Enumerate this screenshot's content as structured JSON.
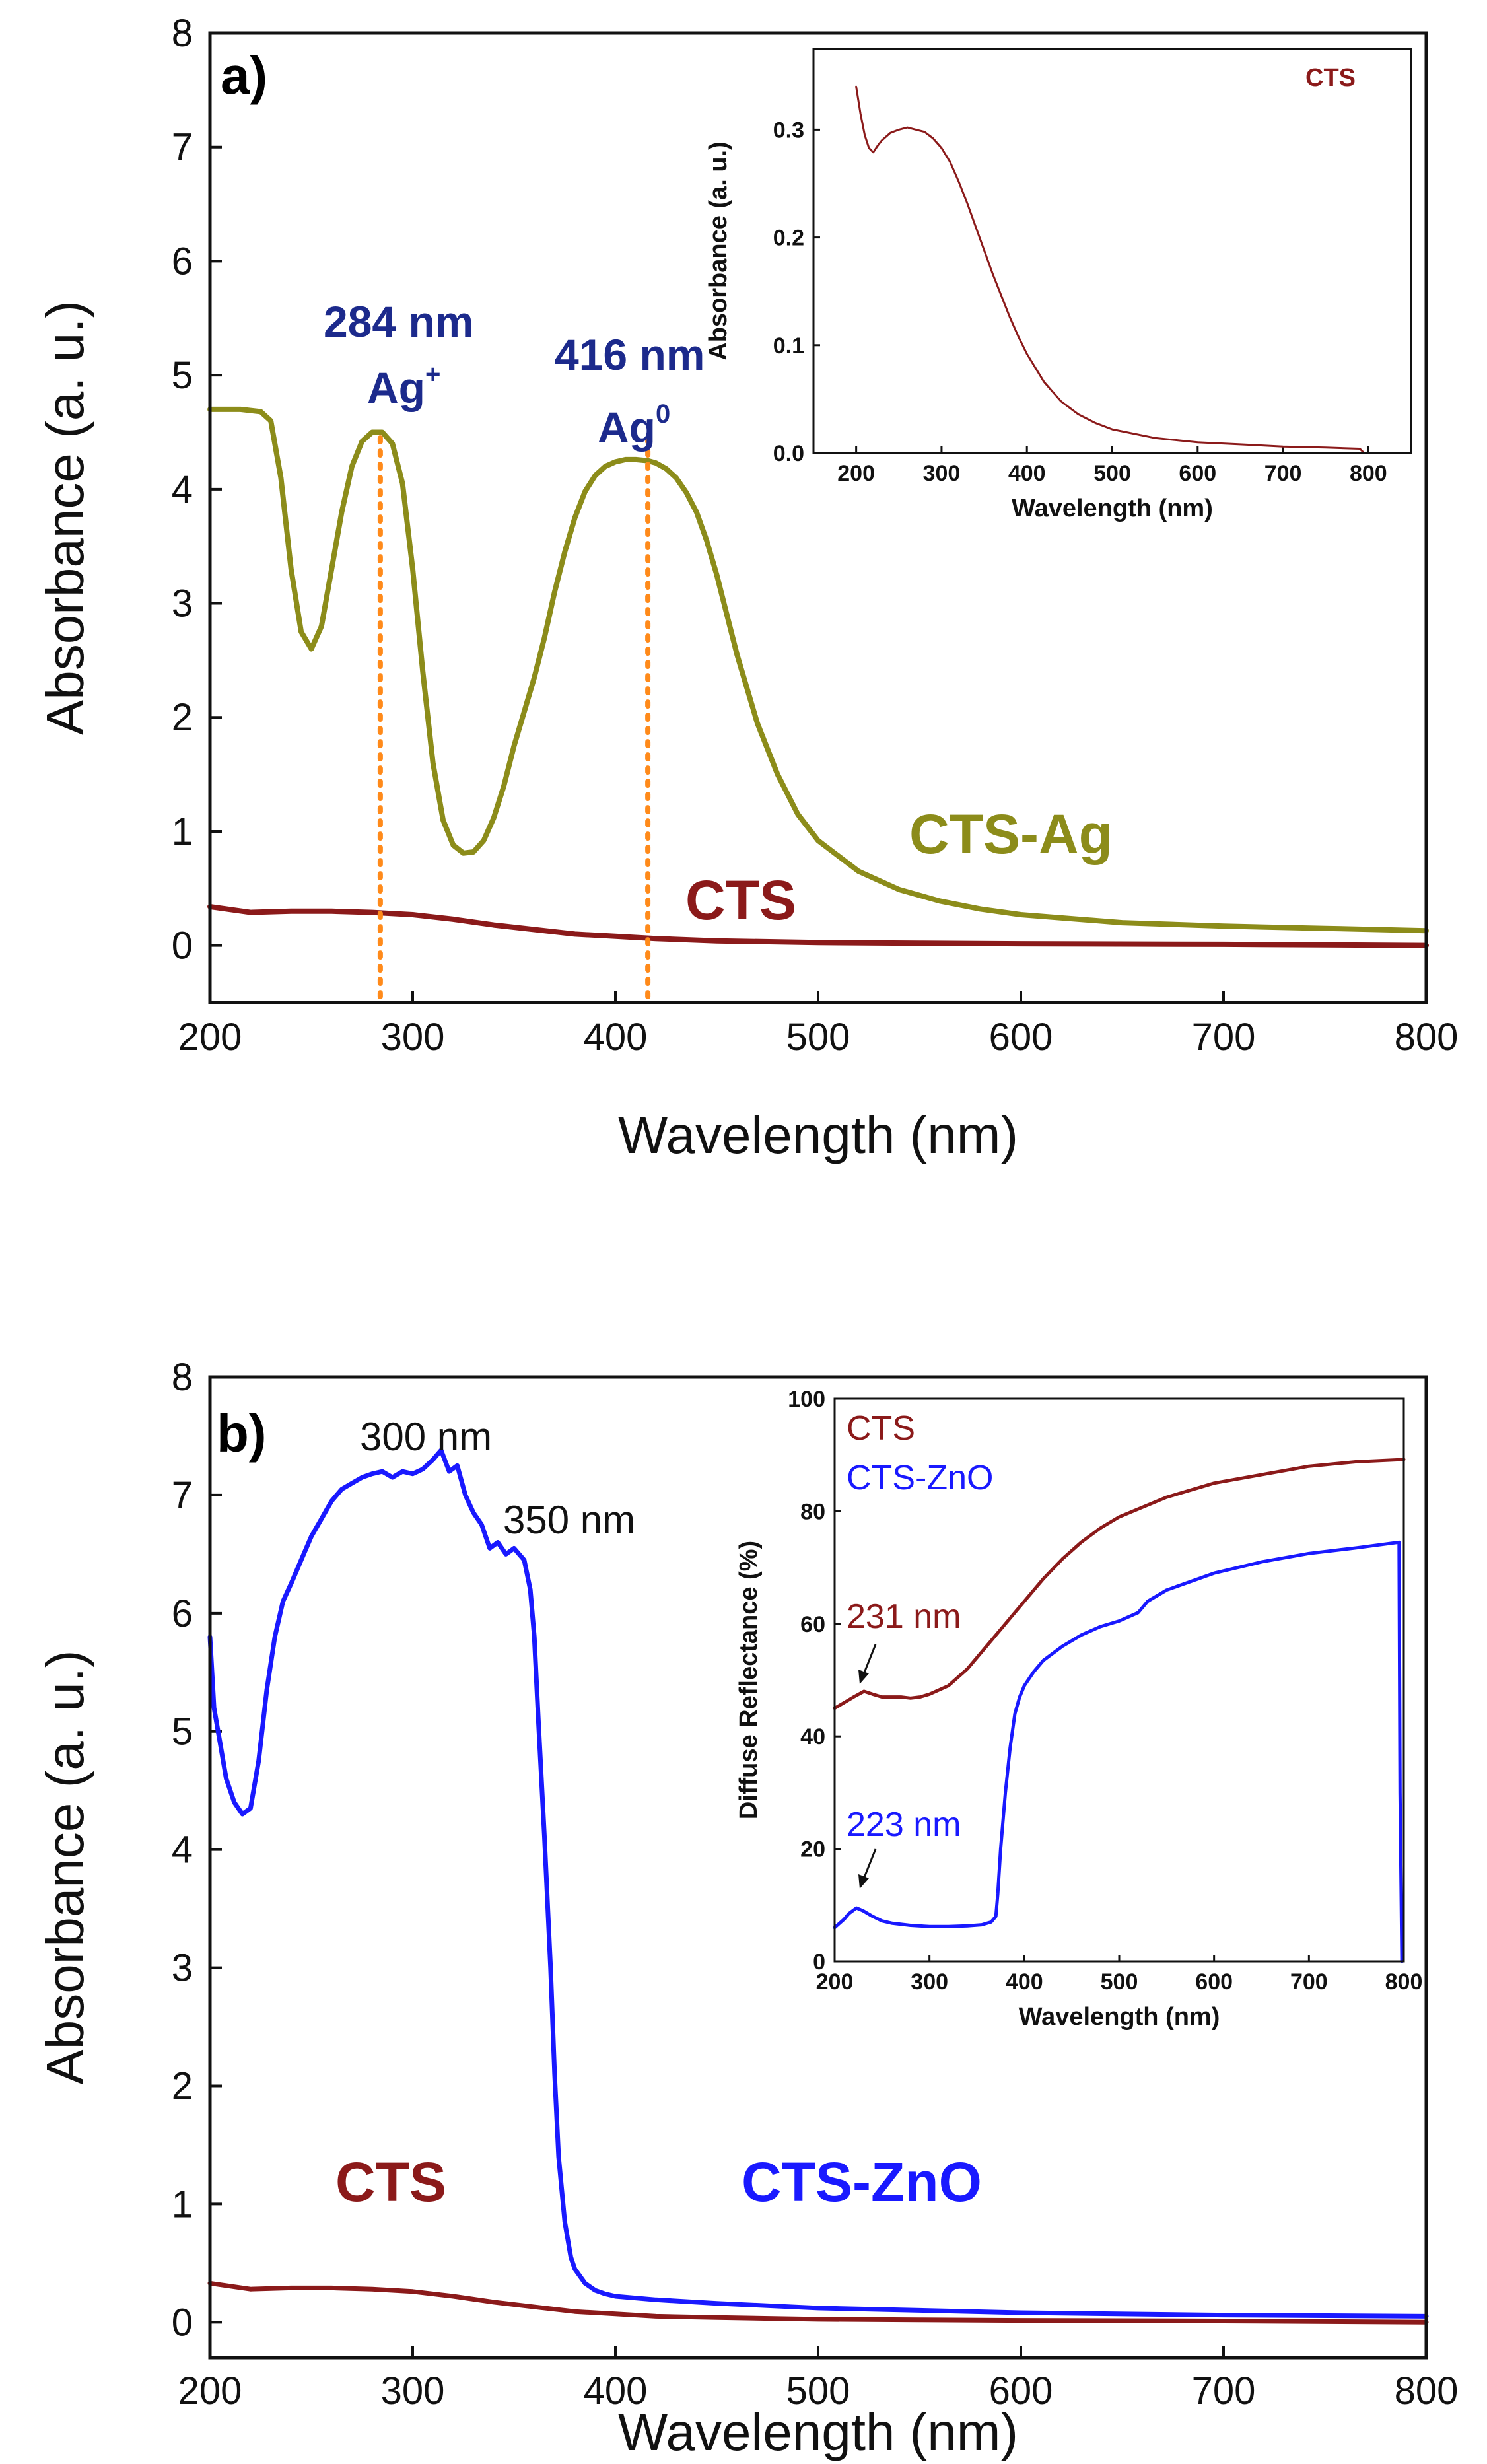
{
  "colors": {
    "ag": "#8c8c1a",
    "cts": "#8b1a1a",
    "zno": "#1919ff",
    "annot_navy": "#1c2a8c",
    "guide": "#ff8a1a",
    "axis": "#111111"
  },
  "chart_data": [
    {
      "id": "panel_a",
      "type": "line",
      "panel_label": "a)",
      "xlabel": "Wavelength (nm)",
      "ylabel": "Absorbance (a. u.)",
      "xlim": [
        200,
        800
      ],
      "ylim": [
        -0.5,
        8
      ],
      "xticks": [
        200,
        300,
        400,
        500,
        600,
        700,
        800
      ],
      "yticks": [
        0,
        1,
        2,
        3,
        4,
        5,
        6,
        7,
        8
      ],
      "series": [
        {
          "name": "CTS-Ag",
          "color": "#8c8c1a",
          "x": [
            200,
            215,
            225,
            230,
            235,
            240,
            245,
            250,
            255,
            260,
            265,
            270,
            275,
            280,
            285,
            290,
            295,
            300,
            305,
            310,
            315,
            320,
            325,
            330,
            335,
            340,
            345,
            350,
            355,
            360,
            365,
            370,
            375,
            380,
            385,
            390,
            395,
            400,
            405,
            410,
            416,
            420,
            425,
            430,
            435,
            440,
            445,
            450,
            455,
            460,
            470,
            480,
            490,
            500,
            520,
            540,
            560,
            580,
            600,
            650,
            700,
            750,
            800
          ],
          "y": [
            4.7,
            4.7,
            4.68,
            4.6,
            4.1,
            3.3,
            2.75,
            2.6,
            2.8,
            3.3,
            3.8,
            4.2,
            4.42,
            4.5,
            4.5,
            4.4,
            4.05,
            3.3,
            2.4,
            1.6,
            1.1,
            0.88,
            0.81,
            0.82,
            0.92,
            1.12,
            1.4,
            1.75,
            2.05,
            2.35,
            2.7,
            3.1,
            3.45,
            3.75,
            3.98,
            4.12,
            4.2,
            4.24,
            4.26,
            4.26,
            4.25,
            4.23,
            4.18,
            4.1,
            3.97,
            3.8,
            3.55,
            3.25,
            2.9,
            2.55,
            1.95,
            1.5,
            1.15,
            0.92,
            0.65,
            0.49,
            0.39,
            0.32,
            0.27,
            0.2,
            0.17,
            0.15,
            0.13
          ]
        },
        {
          "name": "CTS",
          "color": "#8b1a1a",
          "x": [
            200,
            220,
            240,
            260,
            280,
            300,
            320,
            340,
            360,
            380,
            400,
            420,
            450,
            500,
            550,
            600,
            700,
            800
          ],
          "y": [
            0.34,
            0.29,
            0.3,
            0.3,
            0.29,
            0.27,
            0.23,
            0.18,
            0.14,
            0.1,
            0.08,
            0.06,
            0.04,
            0.025,
            0.02,
            0.015,
            0.01,
            0.0
          ]
        }
      ],
      "annotations": {
        "peak1_nm": "284 nm",
        "peak1_ion": "Ag",
        "peak1_sup": "+",
        "peak2_nm": "416 nm",
        "peak2_ion": "Ag",
        "peak2_sup": "0",
        "label_ag": "CTS-Ag",
        "label_cts": "CTS",
        "guide_x": [
          284,
          416
        ]
      },
      "inset": {
        "xlabel": "Wavelength (nm)",
        "ylabel": "Absorbance (a. u.)",
        "xlim": [
          150,
          850
        ],
        "ylim": [
          0,
          0.375
        ],
        "xticks": [
          200,
          300,
          400,
          500,
          600,
          700,
          800
        ],
        "yticks": [
          "0.0",
          "0.1",
          "0.2",
          "0.3"
        ],
        "legend": "CTS",
        "series": [
          {
            "name": "CTS",
            "color": "#8b1a1a",
            "x": [
              200,
              205,
              210,
              215,
              220,
              225,
              230,
              240,
              250,
              260,
              270,
              280,
              290,
              300,
              310,
              320,
              330,
              340,
              350,
              360,
              370,
              380,
              390,
              400,
              420,
              440,
              460,
              480,
              500,
              550,
              600,
              650,
              700,
              750,
              790,
              795
            ],
            "y": [
              0.34,
              0.315,
              0.295,
              0.283,
              0.279,
              0.285,
              0.29,
              0.297,
              0.3,
              0.302,
              0.3,
              0.298,
              0.292,
              0.283,
              0.27,
              0.252,
              0.232,
              0.21,
              0.188,
              0.166,
              0.146,
              0.126,
              0.108,
              0.092,
              0.066,
              0.048,
              0.036,
              0.028,
              0.022,
              0.014,
              0.01,
              0.008,
              0.006,
              0.005,
              0.004,
              0.0
            ]
          }
        ]
      }
    },
    {
      "id": "panel_b",
      "type": "line",
      "panel_label": "b)",
      "xlabel": "Wavelength (nm)",
      "ylabel": "Absorbance (a. u.)",
      "xlim": [
        200,
        800
      ],
      "ylim": [
        -0.3,
        8
      ],
      "xticks": [
        200,
        300,
        400,
        500,
        600,
        700,
        800
      ],
      "yticks": [
        0,
        1,
        2,
        3,
        4,
        5,
        6,
        7,
        8
      ],
      "series": [
        {
          "name": "CTS-ZnO",
          "color": "#1919ff",
          "x": [
            200,
            202,
            205,
            208,
            212,
            216,
            220,
            224,
            228,
            232,
            236,
            240,
            245,
            250,
            255,
            260,
            265,
            270,
            275,
            280,
            285,
            290,
            295,
            300,
            305,
            310,
            314,
            318,
            322,
            326,
            330,
            334,
            338,
            342,
            346,
            350,
            355,
            358,
            360,
            362,
            365,
            368,
            370,
            372,
            375,
            378,
            380,
            385,
            390,
            395,
            400,
            420,
            450,
            500,
            550,
            600,
            700,
            800
          ],
          "y": [
            5.8,
            5.2,
            4.9,
            4.6,
            4.4,
            4.3,
            4.35,
            4.75,
            5.35,
            5.8,
            6.1,
            6.25,
            6.45,
            6.65,
            6.8,
            6.95,
            7.05,
            7.1,
            7.15,
            7.18,
            7.2,
            7.15,
            7.2,
            7.18,
            7.22,
            7.3,
            7.38,
            7.2,
            7.25,
            7.0,
            6.85,
            6.75,
            6.55,
            6.6,
            6.5,
            6.55,
            6.45,
            6.2,
            5.8,
            5.1,
            4.1,
            3.0,
            2.1,
            1.4,
            0.85,
            0.55,
            0.45,
            0.33,
            0.27,
            0.24,
            0.22,
            0.19,
            0.16,
            0.12,
            0.1,
            0.08,
            0.06,
            0.05
          ]
        },
        {
          "name": "CTS",
          "color": "#8b1a1a",
          "x": [
            200,
            220,
            240,
            260,
            280,
            300,
            320,
            340,
            360,
            380,
            400,
            420,
            450,
            500,
            550,
            600,
            700,
            800
          ],
          "y": [
            0.33,
            0.28,
            0.29,
            0.29,
            0.28,
            0.26,
            0.22,
            0.17,
            0.13,
            0.09,
            0.07,
            0.05,
            0.04,
            0.025,
            0.02,
            0.015,
            0.01,
            0.0
          ]
        }
      ],
      "annotations": {
        "peak1": "300 nm",
        "peak2": "350 nm",
        "label_cts": "CTS",
        "label_zno": "CTS-ZnO"
      },
      "inset": {
        "xlabel": "Wavelength (nm)",
        "ylabel": "Diffuse Reflectance (%)",
        "xlim": [
          200,
          800
        ],
        "ylim": [
          0,
          100
        ],
        "xticks": [
          200,
          300,
          400,
          500,
          600,
          700,
          800
        ],
        "yticks": [
          0,
          20,
          40,
          60,
          80,
          100
        ],
        "legend": [
          "CTS",
          "CTS-ZnO"
        ],
        "peak_cts": "231 nm",
        "peak_zno": "223 nm",
        "series": [
          {
            "name": "CTS",
            "color": "#8b1a1a",
            "x": [
              200,
              210,
              220,
              231,
              240,
              250,
              260,
              270,
              280,
              290,
              300,
              320,
              340,
              360,
              380,
              400,
              420,
              440,
              460,
              480,
              500,
              550,
              600,
              650,
              700,
              750,
              800
            ],
            "y": [
              45,
              46,
              47,
              48,
              47.5,
              47,
              47,
              47,
              46.8,
              47,
              47.5,
              49,
              52,
              56,
              60,
              64,
              68,
              71.5,
              74.5,
              77,
              79,
              82.5,
              85,
              86.5,
              88,
              88.8,
              89.2
            ]
          },
          {
            "name": "CTS-ZnO",
            "color": "#1919ff",
            "x": [
              200,
              210,
              215,
              223,
              230,
              240,
              250,
              260,
              280,
              300,
              320,
              340,
              355,
              365,
              370,
              372,
              375,
              380,
              385,
              390,
              395,
              400,
              410,
              420,
              440,
              460,
              480,
              500,
              520,
              530,
              550,
              600,
              650,
              700,
              750,
              795,
              796,
              798
            ],
            "y": [
              6,
              7.5,
              8.5,
              9.5,
              9,
              8,
              7.2,
              6.8,
              6.4,
              6.2,
              6.2,
              6.3,
              6.5,
              7,
              8,
              12,
              20,
              30,
              38,
              44,
              47,
              49,
              51.5,
              53.5,
              56,
              58,
              59.5,
              60.5,
              62,
              64,
              66,
              69,
              71,
              72.5,
              73.5,
              74.5,
              30,
              0
            ]
          }
        ]
      }
    }
  ]
}
